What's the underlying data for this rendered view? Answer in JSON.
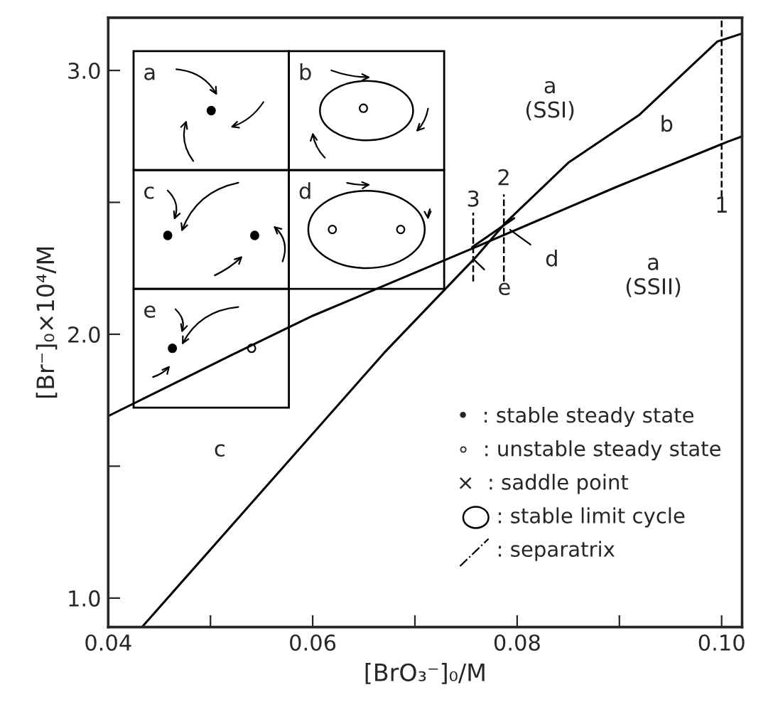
{
  "chart_data": {
    "type": "line",
    "xlabel": "[BrO₃⁻]₀/M",
    "ylabel": "[Br⁻]₀×10⁴/M",
    "xlim": [
      0.04,
      0.102
    ],
    "ylim": [
      0.89,
      3.2
    ],
    "xticks": [
      {
        "value": 0.04,
        "label": "0.04"
      },
      {
        "value": 0.05,
        "label": null
      },
      {
        "value": 0.06,
        "label": "0.06"
      },
      {
        "value": 0.07,
        "label": null
      },
      {
        "value": 0.08,
        "label": "0.08"
      },
      {
        "value": 0.09,
        "label": null
      },
      {
        "value": 0.1,
        "label": "0.10"
      }
    ],
    "yticks": [
      {
        "value": 1.0,
        "label": "1.0"
      },
      {
        "value": 1.5,
        "label": null
      },
      {
        "value": 2.0,
        "label": "2.0"
      },
      {
        "value": 2.5,
        "label": null
      },
      {
        "value": 3.0,
        "label": "3.0"
      }
    ],
    "grid": false,
    "legend": false,
    "marker": "none",
    "line_style": "solid",
    "series": [
      {
        "color": "#000000",
        "x": [
          0.04,
          0.052,
          0.06,
          0.0759,
          0.0898,
          0.1006,
          0.102
        ],
        "values": [
          1.69,
          1.92,
          2.07,
          2.33,
          2.56,
          2.73,
          2.75
        ]
      },
      {
        "color": "#000000",
        "x": [
          0.0433,
          0.067,
          0.0759,
          0.0788,
          0.085,
          0.0919,
          0.0996,
          0.102
        ],
        "values": [
          0.89,
          1.93,
          2.29,
          2.42,
          2.65,
          2.83,
          3.11,
          3.14
        ]
      },
      {
        "color": "#000000",
        "x": [
          0.0756,
          0.0797
        ],
        "values": [
          2.33,
          2.44
        ]
      }
    ],
    "ref_lines": [
      {
        "axis": "x",
        "value": 0.1,
        "line_style": "dashed",
        "color": "#000000"
      },
      {
        "axis": "x",
        "value": 0.0787,
        "line_style": "dashed",
        "color": "#000000"
      },
      {
        "axis": "x",
        "value": 0.0757,
        "line_style": "dashed",
        "color": "#000000"
      }
    ],
    "annotations": [
      "a\n(SSI)",
      "b",
      "a\n(SSII)",
      "c",
      "d",
      "e",
      "1",
      "2",
      "3",
      "a",
      "b",
      "c",
      "d",
      "e",
      "•  : stable steady state",
      "∘  : unstable steady state",
      "×  : saddle point",
      "      : stable limit cycle",
      "      : separatrix"
    ]
  }
}
